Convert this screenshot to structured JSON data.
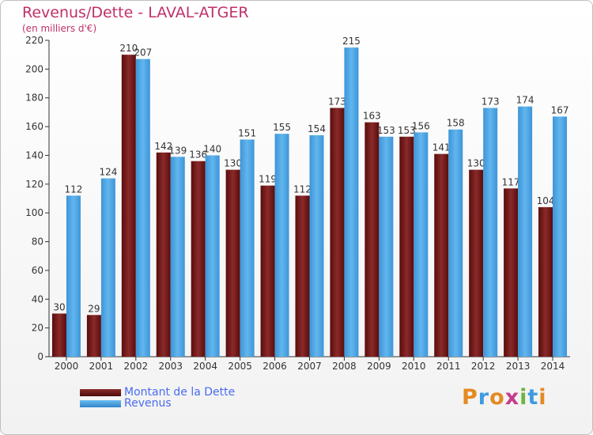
{
  "chart_data": {
    "type": "bar",
    "title": "Revenus/Dette - LAVAL-ATGER",
    "subtitle": "(en milliers d'€)",
    "categories": [
      "2000",
      "2001",
      "2002",
      "2003",
      "2004",
      "2005",
      "2006",
      "2007",
      "2008",
      "2009",
      "2010",
      "2011",
      "2012",
      "2013",
      "2014"
    ],
    "series": [
      {
        "name": "Montant de la Dette",
        "color": "#6d1414",
        "values": [
          30,
          29,
          210,
          142,
          136,
          130,
          119,
          112,
          173,
          163,
          153,
          141,
          130,
          117,
          104
        ]
      },
      {
        "name": "Revenus",
        "color": "#4aa3e6",
        "values": [
          112,
          124,
          207,
          139,
          140,
          151,
          155,
          154,
          215,
          153,
          156,
          158,
          173,
          174,
          167
        ]
      }
    ],
    "ylim": [
      0,
      220
    ],
    "yticks": [
      0,
      20,
      40,
      60,
      80,
      100,
      120,
      140,
      160,
      180,
      200,
      220
    ],
    "grid": false,
    "legend_position": "bottom-left"
  },
  "logo": {
    "text": "Proxiti",
    "colors": [
      "#e38a22",
      "#3f9be0",
      "#e38a22",
      "#c43c8a",
      "#6fb43f",
      "#3f9be0",
      "#e38a22"
    ]
  }
}
